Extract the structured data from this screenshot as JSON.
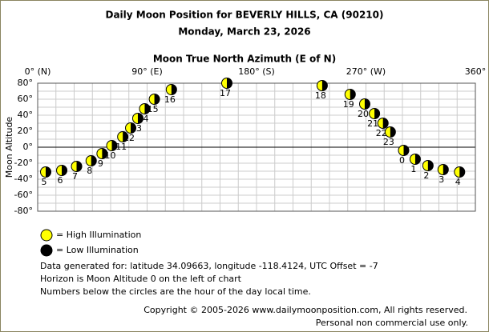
{
  "chart_data": {
    "type": "scatter",
    "title": "Daily Moon Position for BEVERLY HILLS, CA (90210)",
    "subtitle": "Monday, March 23, 2026",
    "x_label": "Moon True North Azimuth (E of N)",
    "y_label": "Moon Altitude",
    "xlim": [
      0,
      360
    ],
    "ylim": [
      -80,
      80
    ],
    "xticks": [
      {
        "value": 0,
        "label": "0° (N)"
      },
      {
        "value": 90,
        "label": "90° (E)"
      },
      {
        "value": 180,
        "label": "180° (S)"
      },
      {
        "value": 270,
        "label": "270° (W)"
      },
      {
        "value": 360,
        "label": "360°"
      }
    ],
    "yticks": [
      {
        "value": 80,
        "label": "80°"
      },
      {
        "value": 60,
        "label": "60°"
      },
      {
        "value": 40,
        "label": "40°"
      },
      {
        "value": 20,
        "label": "20°"
      },
      {
        "value": 0,
        "label": "0°"
      },
      {
        "value": -20,
        "label": "-20°"
      },
      {
        "value": -40,
        "label": "-40°"
      },
      {
        "value": -60,
        "label": "-60°"
      },
      {
        "value": -80,
        "label": "-80°"
      }
    ],
    "grid": true,
    "x": [
      6.6,
      19.8,
      32,
      44,
      53,
      61,
      70,
      76.5,
      82.4,
      88,
      96,
      110,
      155.6,
      234,
      257,
      269,
      277,
      284,
      290,
      301,
      310.5,
      321,
      333.5,
      347
    ],
    "values": [
      -31,
      -29,
      -24,
      -17,
      -8,
      2,
      13,
      24,
      36,
      48,
      60,
      72,
      80,
      77,
      66,
      54,
      42,
      30,
      19,
      -4,
      -15,
      -23,
      -28,
      -31
    ],
    "point_labels": [
      "5",
      "6",
      "7",
      "8",
      "9",
      "10",
      "11",
      "12",
      "13",
      "14",
      "15",
      "16",
      "17",
      "18",
      "19",
      "20",
      "21",
      "22",
      "23",
      "0",
      "1",
      "2",
      "3",
      "4"
    ],
    "legend": [
      {
        "name": "= High Illumination",
        "color": "#ffff00"
      },
      {
        "name": "= Low Illumination",
        "color": "#000000"
      }
    ],
    "notes": [
      "Data generated for: latitude 34.09663, longitude -118.4124, UTC Offset = -7",
      "Horizon is Moon Altitude 0 on the left of chart",
      "Numbers below the circles are the hour of the day local time."
    ],
    "footer": [
      "Copyright © 2005-2026 www.dailymoonposition.com, All rights reserved.",
      "Personal non commercial use only."
    ]
  }
}
